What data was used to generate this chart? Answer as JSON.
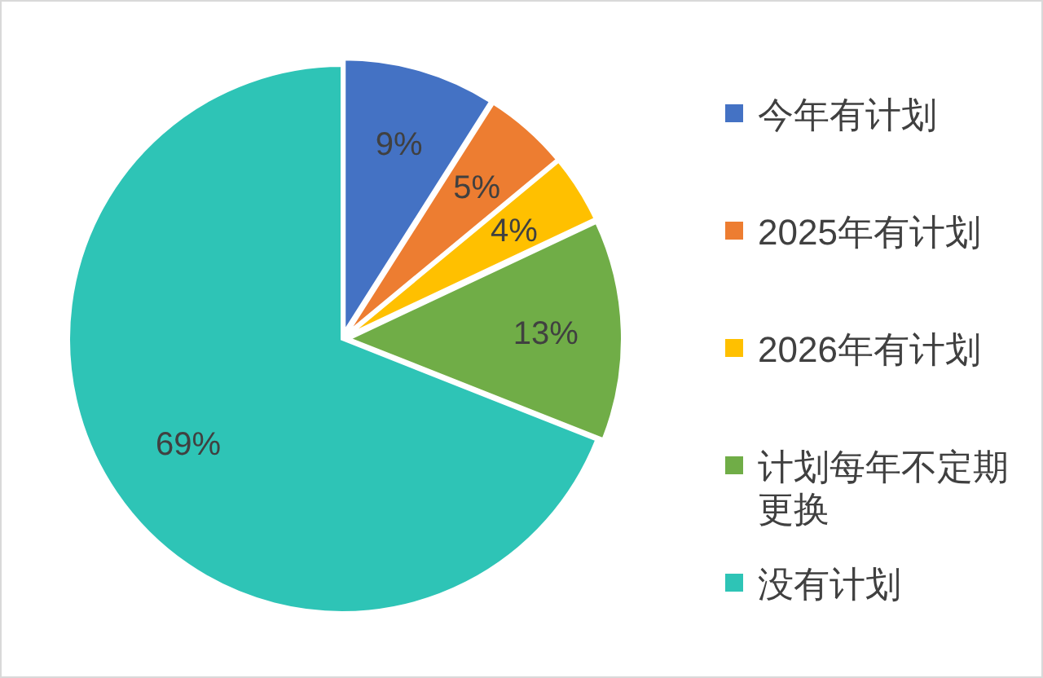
{
  "chart_data": {
    "type": "pie",
    "categories": [
      "今年有计划",
      "2025年有计划",
      "2026年有计划",
      "计划每年不定期更换",
      "没有计划"
    ],
    "values": [
      9,
      5,
      4,
      13,
      69
    ],
    "colors": [
      "#4472c4",
      "#ed7d31",
      "#ffc000",
      "#70ad47",
      "#2ec4b6"
    ],
    "value_labels": [
      "9%",
      "5%",
      "4%",
      "13%",
      "69%"
    ],
    "legend": "right"
  }
}
